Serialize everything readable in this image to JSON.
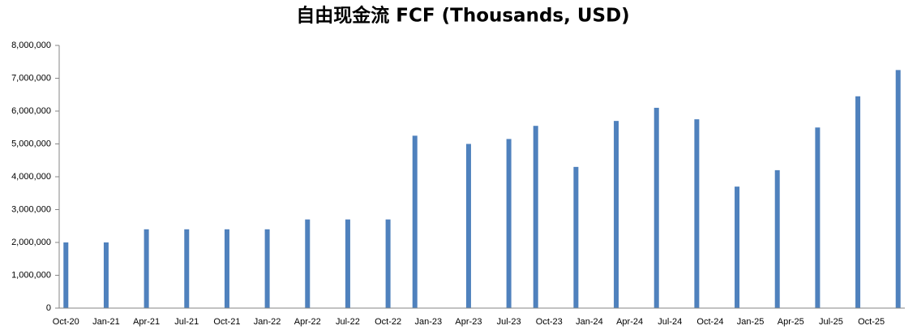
{
  "chart_data": {
    "type": "bar",
    "title": "自由现金流 FCF (Thousands, USD)",
    "categories": [
      "Oct-20",
      null,
      null,
      "Jan-21",
      null,
      null,
      "Apr-21",
      null,
      null,
      "Jul-21",
      null,
      null,
      "Oct-21",
      null,
      null,
      "Jan-22",
      null,
      null,
      "Apr-22",
      null,
      null,
      "Jul-22",
      null,
      null,
      "Oct-22",
      null,
      null,
      "Jan-23",
      null,
      null,
      "Apr-23",
      null,
      null,
      "Jul-23",
      null,
      null,
      "Oct-23",
      null,
      null,
      "Jan-24",
      null,
      null,
      "Apr-24",
      null,
      null,
      "Jul-24",
      null,
      null,
      "Oct-24",
      null,
      null,
      "Jan-25",
      null,
      null,
      "Apr-25",
      null,
      null,
      "Jul-25",
      null,
      null,
      "Oct-25",
      null,
      null
    ],
    "values": [
      2000000,
      null,
      null,
      2000000,
      null,
      null,
      2400000,
      null,
      null,
      2400000,
      null,
      null,
      2400000,
      null,
      null,
      2400000,
      null,
      null,
      2700000,
      null,
      null,
      2700000,
      null,
      null,
      2700000,
      null,
      5250000,
      null,
      null,
      null,
      5000000,
      null,
      null,
      5150000,
      null,
      5550000,
      null,
      null,
      4300000,
      null,
      null,
      5700000,
      null,
      null,
      6100000,
      null,
      null,
      5750000,
      null,
      null,
      3700000,
      null,
      null,
      4200000,
      null,
      null,
      5500000,
      null,
      null,
      6450000,
      null,
      null,
      7250000
    ],
    "color": "#4f81bd",
    "ylim": [
      0,
      8000000
    ],
    "yticks": [
      0,
      {
        "value": 1000000,
        "label": "1,000,000"
      },
      {
        "value": 2000000,
        "label": "2,000,000"
      },
      {
        "value": 3000000,
        "label": "3,000,000"
      },
      {
        "value": 4000000,
        "label": "4,000,000"
      },
      {
        "value": 5000000,
        "label": "5,000,000"
      },
      {
        "value": 6000000,
        "label": "6,000,000"
      },
      {
        "value": 7000000,
        "label": "7,000,000"
      },
      {
        "value": 8000000,
        "label": "8,000,000"
      }
    ],
    "grid": false
  }
}
